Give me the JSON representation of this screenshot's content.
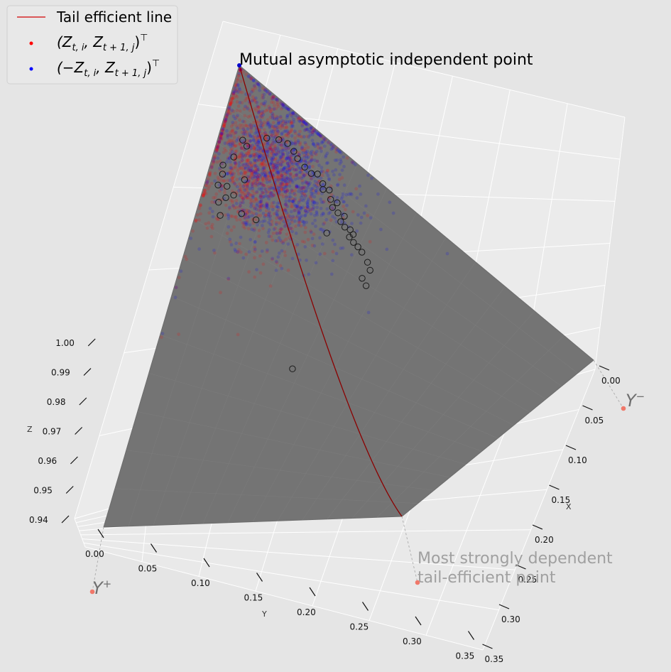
{
  "chart_data": {
    "type": "scatter",
    "projection": "3d",
    "surface": "spherical cap (unit sphere)",
    "xlabel": "X",
    "ylabel": "Y",
    "zlabel": "Z",
    "xlim": [
      0,
      0.35
    ],
    "ylim": [
      0,
      0.35
    ],
    "zlim": [
      0.935,
      1.0
    ],
    "x_ticks": [
      "0.00",
      "0.05",
      "0.10",
      "0.15",
      "0.20",
      "0.25",
      "0.30",
      "0.35"
    ],
    "y_ticks": [
      "0.00",
      "0.05",
      "0.10",
      "0.15",
      "0.20",
      "0.25",
      "0.30",
      "0.35"
    ],
    "z_ticks": [
      "0.94",
      "0.95",
      "0.96",
      "0.97",
      "0.98",
      "0.99",
      "1.00"
    ],
    "grid": true,
    "legend": {
      "placement": "top-left",
      "entries": [
        {
          "label": "Tail efficient line",
          "marker": "line",
          "color": "#d62728"
        },
        {
          "label_main": "(Z",
          "label_sub1": "t, i",
          "label_mid": ", Z",
          "label_sub2": "t + 1, j",
          "label_end": ")",
          "label_sup": "⊤",
          "marker": "dot",
          "color": "#ff0000"
        },
        {
          "label_main": "(−Z",
          "label_sub1": "t, i",
          "label_mid": ", Z",
          "label_sub2": "t + 1, j",
          "label_end": ")",
          "label_sup": "⊤",
          "marker": "dot",
          "color": "#0000ff"
        }
      ]
    },
    "annotations": {
      "mutual": "Mutual asymptotic independent point",
      "strong_line1": "Most strongly dependent",
      "strong_line2": "tail-efficient point",
      "y_plus": "Y",
      "y_plus_sup": "+",
      "y_minus": "Y",
      "y_minus_sup": "−"
    },
    "named_points": {
      "mutual": {
        "x": 0.0,
        "y": 0.0,
        "z": 1.0
      },
      "strong": {
        "x": 0.247,
        "y": 0.247,
        "z": 0.937
      },
      "y_plus": {
        "x": 0.0,
        "y": 0.35,
        "z": 0.936
      },
      "y_minus": {
        "x": 0.35,
        "y": 0.0,
        "z": 0.936
      }
    },
    "series": [
      {
        "name": "(Z_{t,i}, Z_{t+1,j})",
        "color": "#ff0000",
        "n_points": 1100,
        "center": {
          "x": 0.04,
          "y": 0.05
        },
        "spread": 0.03
      },
      {
        "name": "(−Z_{t,i}, Z_{t+1,j})",
        "color": "#0000ff",
        "n_points": 1100,
        "center": {
          "x": 0.06,
          "y": 0.045
        },
        "spread": 0.03
      }
    ],
    "circled_points": [
      {
        "x": 0.021,
        "y": 0.045
      },
      {
        "x": 0.026,
        "y": 0.047
      },
      {
        "x": 0.04,
        "y": 0.032
      },
      {
        "x": 0.05,
        "y": 0.027
      },
      {
        "x": 0.058,
        "y": 0.025
      },
      {
        "x": 0.065,
        "y": 0.027
      },
      {
        "x": 0.07,
        "y": 0.03
      },
      {
        "x": 0.078,
        "y": 0.032
      },
      {
        "x": 0.085,
        "y": 0.033
      },
      {
        "x": 0.09,
        "y": 0.03
      },
      {
        "x": 0.097,
        "y": 0.034
      },
      {
        "x": 0.104,
        "y": 0.035
      },
      {
        "x": 0.099,
        "y": 0.038
      },
      {
        "x": 0.108,
        "y": 0.041
      },
      {
        "x": 0.114,
        "y": 0.04
      },
      {
        "x": 0.112,
        "y": 0.046
      },
      {
        "x": 0.118,
        "y": 0.047
      },
      {
        "x": 0.124,
        "y": 0.046
      },
      {
        "x": 0.123,
        "y": 0.052
      },
      {
        "x": 0.128,
        "y": 0.054
      },
      {
        "x": 0.133,
        "y": 0.053
      },
      {
        "x": 0.137,
        "y": 0.055
      },
      {
        "x": 0.135,
        "y": 0.059
      },
      {
        "x": 0.14,
        "y": 0.061
      },
      {
        "x": 0.145,
        "y": 0.062
      },
      {
        "x": 0.15,
        "y": 0.064
      },
      {
        "x": 0.116,
        "y": 0.068
      },
      {
        "x": 0.158,
        "y": 0.069
      },
      {
        "x": 0.163,
        "y": 0.074
      },
      {
        "x": 0.16,
        "y": 0.085
      },
      {
        "x": 0.166,
        "y": 0.089
      },
      {
        "x": 0.033,
        "y": 0.07
      },
      {
        "x": 0.018,
        "y": 0.06
      },
      {
        "x": 0.011,
        "y": 0.07
      },
      {
        "x": 0.013,
        "y": 0.076
      },
      {
        "x": 0.02,
        "y": 0.082
      },
      {
        "x": 0.028,
        "y": 0.085
      },
      {
        "x": 0.022,
        "y": 0.09
      },
      {
        "x": 0.012,
        "y": 0.085
      },
      {
        "x": 0.017,
        "y": 0.096
      },
      {
        "x": 0.022,
        "y": 0.104
      },
      {
        "x": 0.04,
        "y": 0.094
      },
      {
        "x": 0.054,
        "y": 0.092
      },
      {
        "x": 0.138,
        "y": 0.192
      }
    ]
  }
}
